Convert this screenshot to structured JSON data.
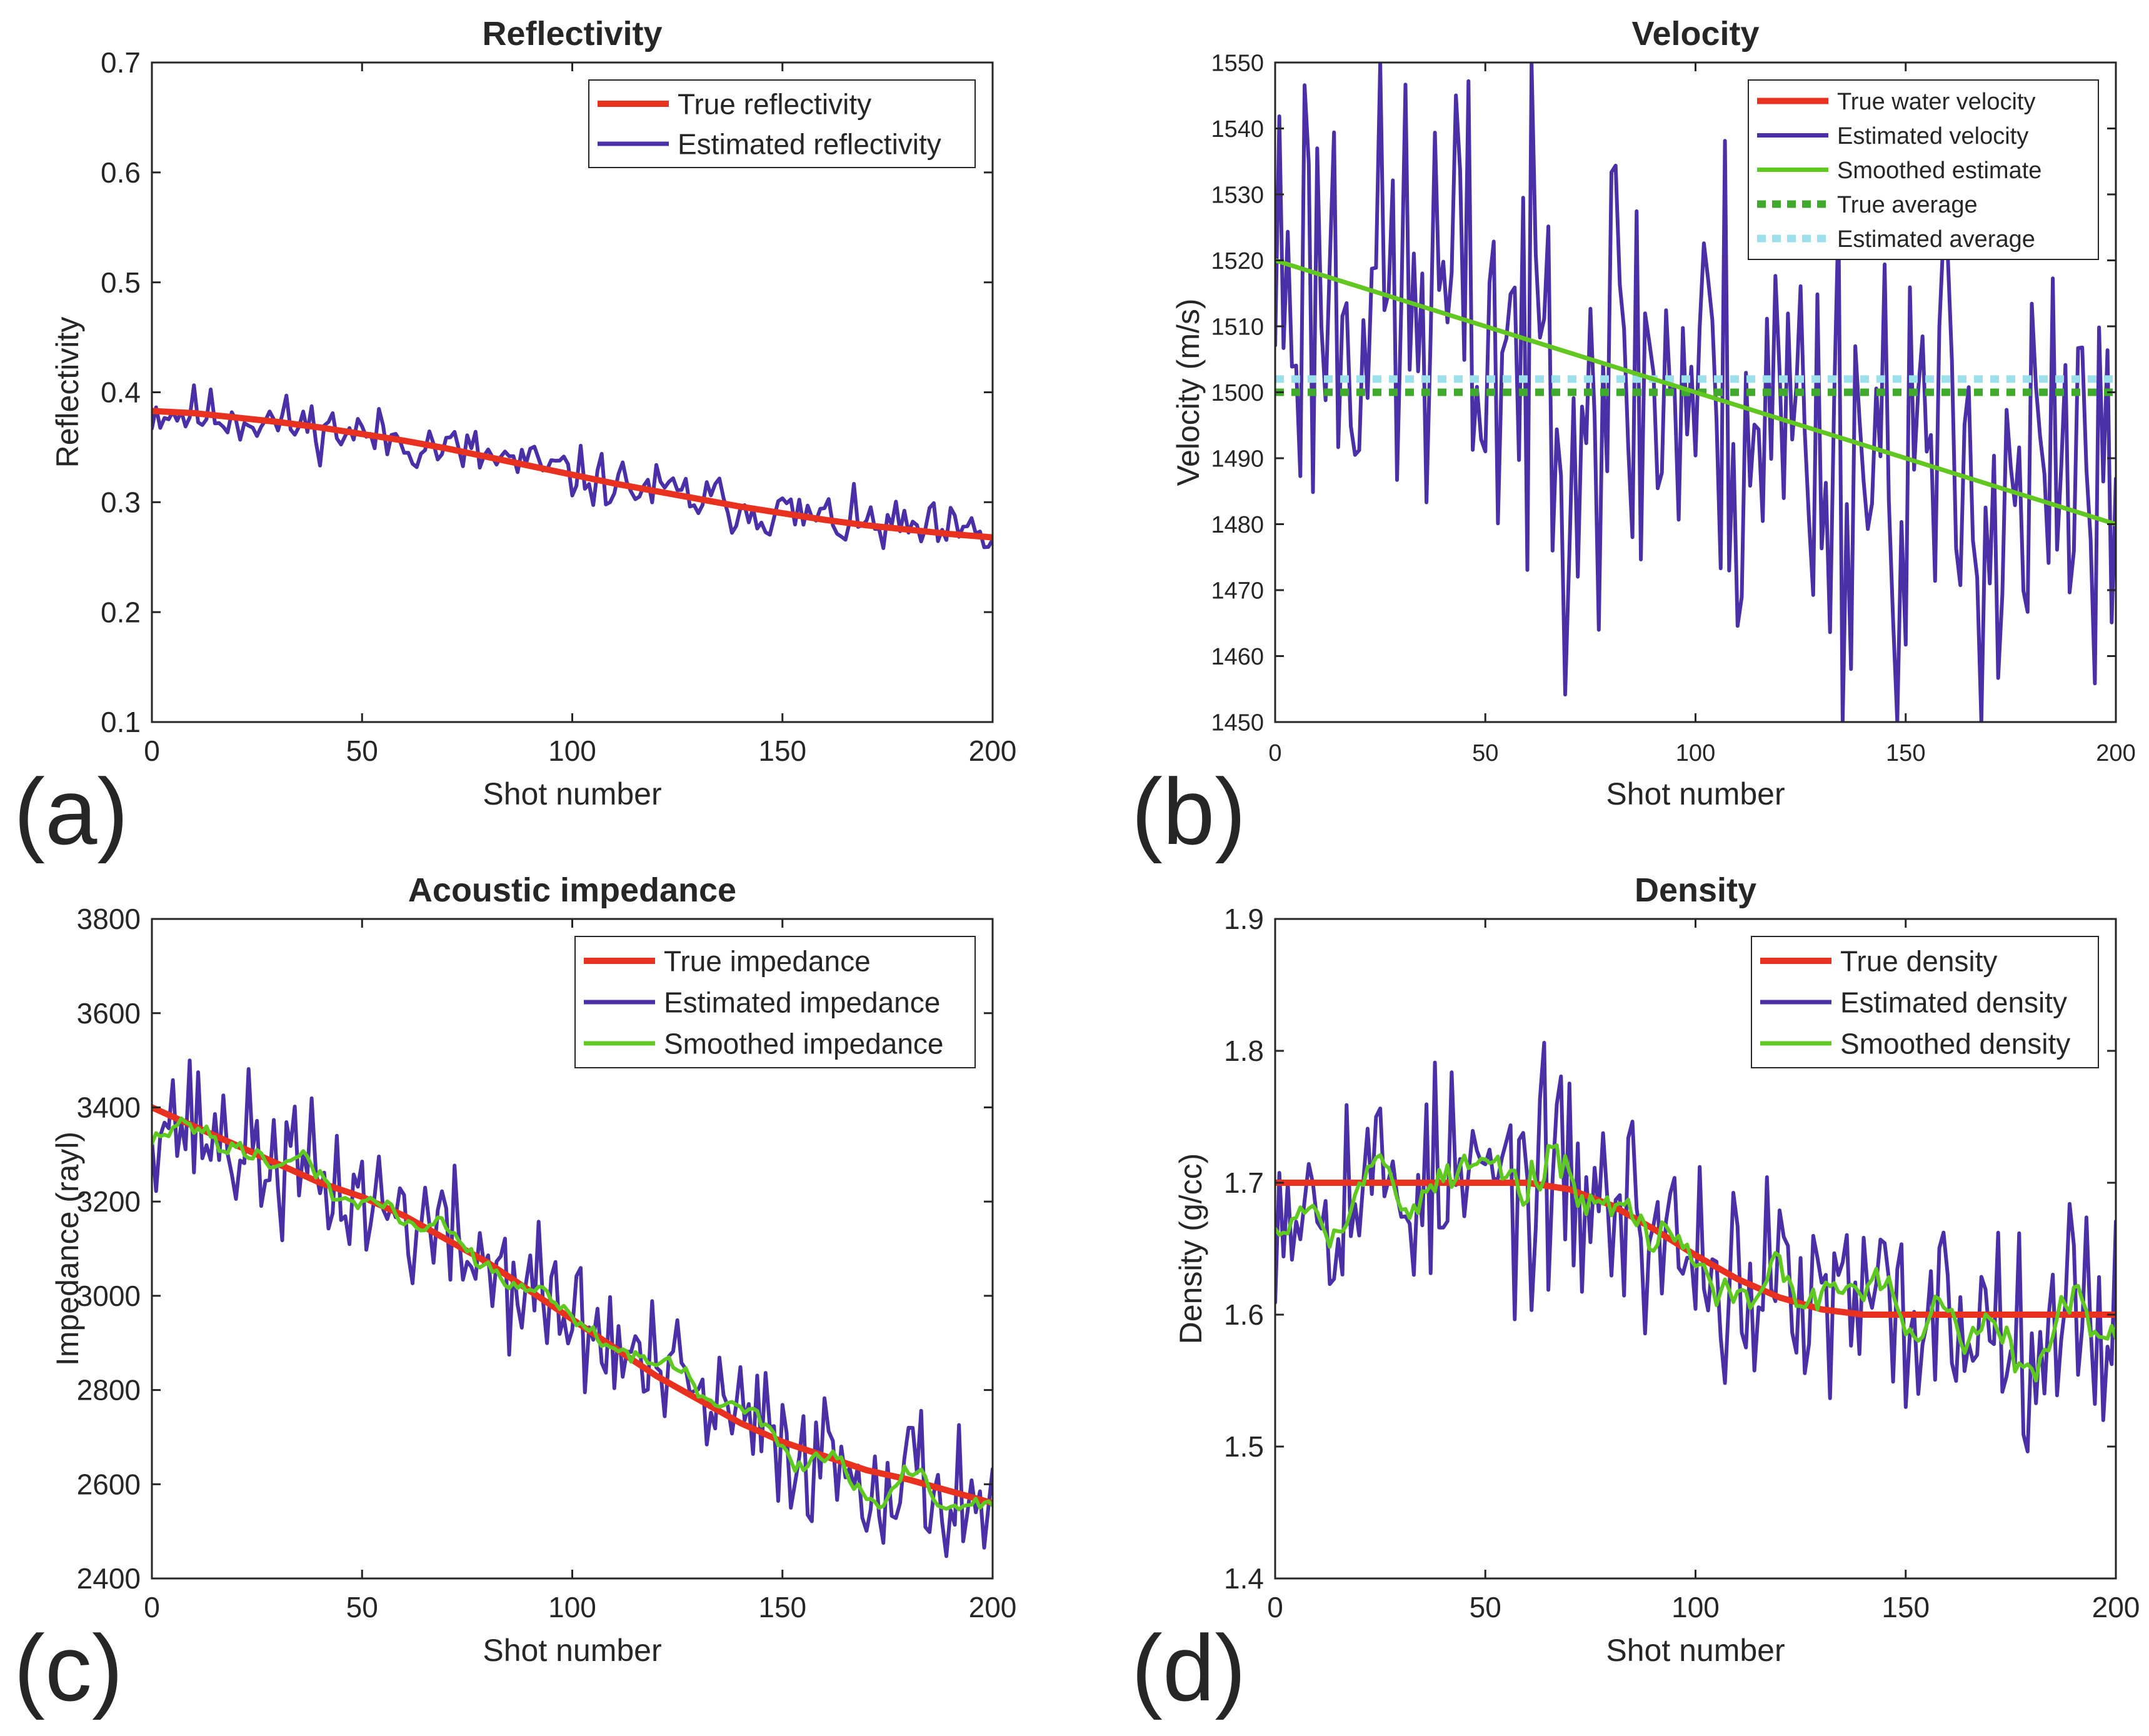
{
  "figure": {
    "panels": [
      "(a)",
      "(b)",
      "(c)",
      "(d)"
    ]
  },
  "colors": {
    "true_red": "#e8311f",
    "estimated_blue": "#4b2fa6",
    "smoothed_green": "#5fc922",
    "true_average_green": "#3ea92a",
    "estimated_average_cyan": "#9be0ea"
  },
  "chart_data": [
    {
      "type": "line",
      "panel": "(a)",
      "title": "Reflectivity",
      "xlabel": "Shot number",
      "ylabel": "Reflectivity",
      "xlim": [
        0,
        200
      ],
      "ylim": [
        0.1,
        0.7
      ],
      "xticks": [
        0,
        50,
        100,
        150,
        200
      ],
      "yticks": [
        0.1,
        0.2,
        0.3,
        0.4,
        0.5,
        0.6,
        0.7
      ],
      "tick_decimals": 1,
      "legend_position": "top-right",
      "grid": false,
      "series": [
        {
          "name": "True reflectivity",
          "color": "#e8311f",
          "kind": "true",
          "x": [
            0,
            10,
            20,
            30,
            40,
            50,
            60,
            70,
            80,
            90,
            100,
            110,
            120,
            130,
            140,
            150,
            160,
            170,
            180,
            190,
            200
          ],
          "y": [
            0.383,
            0.381,
            0.377,
            0.373,
            0.368,
            0.362,
            0.356,
            0.349,
            0.341,
            0.333,
            0.325,
            0.317,
            0.31,
            0.303,
            0.296,
            0.29,
            0.284,
            0.279,
            0.275,
            0.271,
            0.268
          ]
        },
        {
          "name": "Estimated reflectivity",
          "color": "#4b2fa6",
          "kind": "noisy",
          "base_from": 0,
          "amplitude": 0.038,
          "seed": 11
        }
      ]
    },
    {
      "type": "line",
      "panel": "(b)",
      "title": "Velocity",
      "xlabel": "Shot number",
      "ylabel": "Velocity (m/s)",
      "xlim": [
        0,
        200
      ],
      "ylim": [
        1450,
        1550
      ],
      "xticks": [
        0,
        50,
        100,
        150,
        200
      ],
      "yticks": [
        1450,
        1460,
        1470,
        1480,
        1490,
        1500,
        1510,
        1520,
        1530,
        1540,
        1550
      ],
      "tick_decimals": 0,
      "legend_position": "top-right",
      "grid": false,
      "series": [
        {
          "name": "True water velocity",
          "color": "#e8311f",
          "kind": "true",
          "x": [
            0,
            200
          ],
          "y": [
            1520,
            1480
          ]
        },
        {
          "name": "Estimated velocity",
          "color": "#4b2fa6",
          "kind": "noisy",
          "base_from": 0,
          "amplitude": 60,
          "seed": 23
        },
        {
          "name": "Smoothed estimate",
          "color": "#5fc922",
          "kind": "true",
          "x": [
            0,
            200
          ],
          "y": [
            1520,
            1480
          ]
        },
        {
          "name": "True average",
          "color": "#3ea92a",
          "kind": "hline",
          "y": 1500,
          "dashed": true
        },
        {
          "name": "Estimated average",
          "color": "#9be0ea",
          "kind": "hline",
          "y": 1502,
          "dashed": true
        }
      ]
    },
    {
      "type": "line",
      "panel": "(c)",
      "title": "Acoustic impedance",
      "xlabel": "Shot number",
      "ylabel": "Impedance (rayl)",
      "xlim": [
        0,
        200
      ],
      "ylim": [
        2400,
        3800
      ],
      "xticks": [
        0,
        50,
        100,
        150,
        200
      ],
      "yticks": [
        2400,
        2600,
        2800,
        3000,
        3200,
        3400,
        3600,
        3800
      ],
      "tick_decimals": 0,
      "legend_position": "top-right",
      "grid": false,
      "series": [
        {
          "name": "True impedance",
          "color": "#e8311f",
          "kind": "true",
          "x": [
            0,
            10,
            20,
            30,
            40,
            50,
            60,
            70,
            80,
            90,
            100,
            110,
            120,
            130,
            140,
            150,
            160,
            170,
            180,
            190,
            200
          ],
          "y": [
            3400,
            3360,
            3320,
            3280,
            3240,
            3210,
            3170,
            3120,
            3070,
            3010,
            2950,
            2890,
            2830,
            2780,
            2730,
            2690,
            2660,
            2630,
            2610,
            2585,
            2560
          ]
        },
        {
          "name": "Estimated impedance",
          "color": "#4b2fa6",
          "kind": "noisy",
          "base_from": 0,
          "amplitude": 230,
          "seed": 37
        },
        {
          "name": "Smoothed impedance",
          "color": "#5fc922",
          "kind": "smooth",
          "source": 1,
          "window": 4
        }
      ]
    },
    {
      "type": "line",
      "panel": "(d)",
      "title": "Density",
      "xlabel": "Shot number",
      "ylabel": "Density (g/cc)",
      "xlim": [
        0,
        200
      ],
      "ylim": [
        1.4,
        1.9
      ],
      "xticks": [
        0,
        50,
        100,
        150,
        200
      ],
      "yticks": [
        1.4,
        1.5,
        1.6,
        1.7,
        1.8,
        1.9
      ],
      "tick_decimals": 1,
      "legend_position": "top-right",
      "grid": false,
      "series": [
        {
          "name": "True density",
          "color": "#e8311f",
          "kind": "true",
          "x": [
            0,
            60,
            70,
            80,
            90,
            100,
            110,
            120,
            130,
            140,
            200
          ],
          "y": [
            1.7,
            1.7,
            1.695,
            1.683,
            1.665,
            1.645,
            1.627,
            1.613,
            1.604,
            1.6,
            1.6
          ]
        },
        {
          "name": "Estimated density",
          "color": "#4b2fa6",
          "kind": "noisy",
          "base_from": 0,
          "amplitude": 0.13,
          "seed": 53
        },
        {
          "name": "Smoothed density",
          "color": "#5fc922",
          "kind": "smooth",
          "source": 1,
          "window": 3
        }
      ]
    }
  ]
}
